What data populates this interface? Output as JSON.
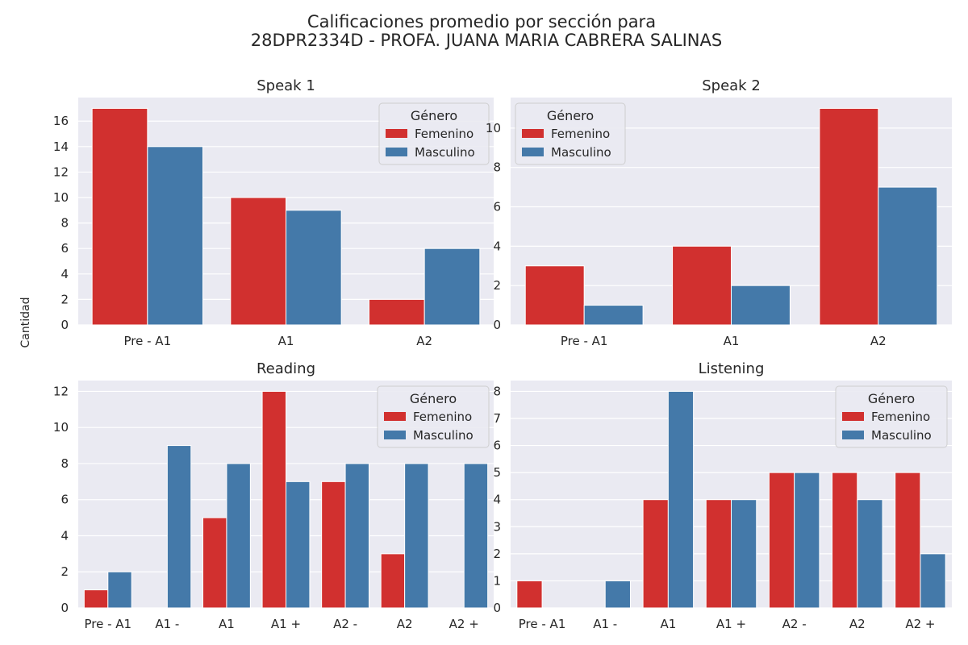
{
  "figure": {
    "title_line1": "Calificaciones promedio por sección para",
    "title_line2": "28DPR2334D - PROFA. JUANA MARIA CABRERA SALINAS",
    "ylabel": "Cantidad"
  },
  "colors": {
    "Femenino": "#d1302f",
    "Masculino": "#4479a9",
    "background": "#eaeaf2",
    "grid": "#ffffff"
  },
  "chart_data": [
    {
      "type": "bar",
      "title": "Speak 1",
      "categories": [
        "Pre - A1",
        "A1",
        "A2"
      ],
      "series": [
        {
          "name": "Femenino",
          "values": [
            17,
            10,
            2
          ]
        },
        {
          "name": "Masculino",
          "values": [
            14,
            9,
            6
          ]
        }
      ],
      "ylim": [
        0,
        17.85
      ],
      "yticks": [
        0,
        2,
        4,
        6,
        8,
        10,
        12,
        14,
        16
      ],
      "grid": true,
      "legend": {
        "title": "Género",
        "placement": "upper right"
      }
    },
    {
      "type": "bar",
      "title": "Speak 2",
      "categories": [
        "Pre - A1",
        "A1",
        "A2"
      ],
      "series": [
        {
          "name": "Femenino",
          "values": [
            3,
            4,
            11
          ]
        },
        {
          "name": "Masculino",
          "values": [
            1,
            2,
            7
          ]
        }
      ],
      "ylim": [
        0,
        11.55
      ],
      "yticks": [
        0,
        2,
        4,
        6,
        8,
        10
      ],
      "grid": true,
      "legend": {
        "title": "Género",
        "placement": "upper left"
      }
    },
    {
      "type": "bar",
      "title": "Reading",
      "categories": [
        "Pre - A1",
        "A1 -",
        "A1",
        "A1 +",
        "A2 -",
        "A2",
        "A2 +"
      ],
      "series": [
        {
          "name": "Femenino",
          "values": [
            1,
            0,
            5,
            12,
            7,
            3,
            0
          ]
        },
        {
          "name": "Masculino",
          "values": [
            2,
            9,
            8,
            7,
            8,
            8,
            8
          ]
        }
      ],
      "ylim": [
        0,
        12.6
      ],
      "yticks": [
        0,
        2,
        4,
        6,
        8,
        10,
        12
      ],
      "grid": true,
      "legend": {
        "title": "Género",
        "placement": "upper right"
      }
    },
    {
      "type": "bar",
      "title": "Listening",
      "categories": [
        "Pre - A1",
        "A1 -",
        "A1",
        "A1 +",
        "A2 -",
        "A2",
        "A2 +"
      ],
      "series": [
        {
          "name": "Femenino",
          "values": [
            1,
            0,
            4,
            4,
            5,
            5,
            5
          ]
        },
        {
          "name": "Masculino",
          "values": [
            0,
            1,
            8,
            4,
            5,
            4,
            2
          ]
        }
      ],
      "ylim": [
        0,
        8.4
      ],
      "yticks": [
        0,
        1,
        2,
        3,
        4,
        5,
        6,
        7,
        8
      ],
      "grid": true,
      "legend": {
        "title": "Género",
        "placement": "upper right"
      }
    }
  ]
}
